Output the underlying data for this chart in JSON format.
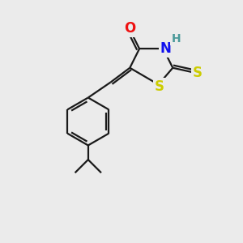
{
  "bg_color": "#ebebeb",
  "atom_colors": {
    "C": "#000000",
    "N": "#1010ee",
    "O": "#ee1010",
    "S_ring": "#cccc00",
    "S_thione": "#cccc00",
    "H": "#4a9999"
  },
  "bond_color": "#1a1a1a",
  "bond_width": 1.6,
  "fig_size": [
    3.0,
    3.0
  ],
  "dpi": 100
}
